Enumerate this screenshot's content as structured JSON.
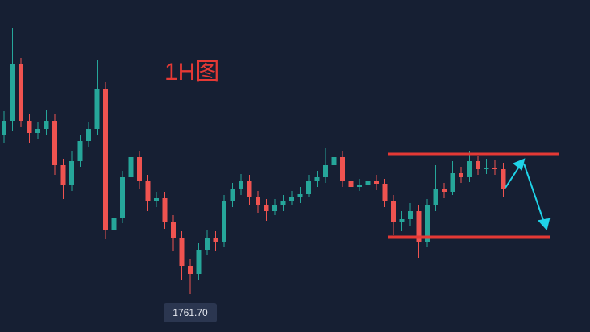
{
  "chart_data": {
    "type": "candlestick",
    "title": "1H图",
    "up_color": "#26a69a",
    "down_color": "#ef5350",
    "ylim": [
      1757.0,
      1798.2
    ],
    "open": [
      1781.5,
      1783.2,
      1790.2,
      1783.2,
      1781.7,
      1782.2,
      1783.2,
      1777.7,
      1775.2,
      1778.2,
      1780.7,
      1782.2,
      1787.2,
      1769.7,
      1771.2,
      1776.2,
      1778.7,
      1775.7,
      1773.2,
      1773.6,
      1770.7,
      1768.7,
      1765.2,
      1764.2,
      1767.2,
      1768.7,
      1768.2,
      1773.2,
      1774.7,
      1775.7,
      1773.7,
      1772.7,
      1772.0,
      1772.7,
      1773.2,
      1773.7,
      1774.1,
      1775.7,
      1776.2,
      1777.7,
      1778.7,
      1775.7,
      1775.0,
      1775.2,
      1775.7,
      1775.4,
      1773.2,
      1770.7,
      1771.0,
      1772.0,
      1768.2,
      1772.7,
      1774.7,
      1774.4,
      1776.7,
      1776.2,
      1778.2,
      1777.2,
      1777.4,
      1777.2
    ],
    "high": [
      1784.4,
      1794.7,
      1791.0,
      1784.0,
      1783.0,
      1784.5,
      1784.0,
      1778.5,
      1779.4,
      1781.5,
      1783.0,
      1790.7,
      1788.0,
      1772.5,
      1777.0,
      1779.5,
      1779.4,
      1776.5,
      1774.4,
      1774.4,
      1771.5,
      1769.5,
      1766.0,
      1768.0,
      1769.6,
      1769.5,
      1774.0,
      1775.5,
      1776.6,
      1776.5,
      1774.5,
      1773.5,
      1773.5,
      1774.0,
      1774.5,
      1775.0,
      1776.5,
      1777.0,
      1779.8,
      1780.2,
      1779.5,
      1776.5,
      1776.0,
      1776.5,
      1776.5,
      1776.0,
      1774.0,
      1772.0,
      1773.0,
      1772.8,
      1773.5,
      1777.7,
      1775.5,
      1778.2,
      1777.5,
      1779.5,
      1778.9,
      1778.5,
      1778.4,
      1778.0
    ],
    "low": [
      1780.5,
      1782.0,
      1782.5,
      1780.5,
      1781.0,
      1781.4,
      1776.5,
      1773.5,
      1774.5,
      1777.5,
      1780.0,
      1781.5,
      1768.5,
      1768.8,
      1770.5,
      1775.5,
      1774.8,
      1772.0,
      1772.5,
      1769.8,
      1767.0,
      1763.5,
      1761.7,
      1763.5,
      1766.5,
      1767.0,
      1767.5,
      1772.5,
      1774.0,
      1772.8,
      1771.8,
      1770.8,
      1771.5,
      1772.0,
      1772.8,
      1773.0,
      1773.8,
      1775.0,
      1775.5,
      1777.5,
      1775.0,
      1774.2,
      1774.5,
      1774.8,
      1774.6,
      1772.5,
      1769.0,
      1769.5,
      1770.2,
      1766.2,
      1767.5,
      1772.0,
      1773.6,
      1774.0,
      1775.5,
      1775.6,
      1776.5,
      1776.6,
      1776.5,
      1773.8
    ],
    "close": [
      1783.2,
      1790.2,
      1783.2,
      1781.7,
      1782.2,
      1783.2,
      1777.7,
      1775.2,
      1778.2,
      1780.7,
      1782.2,
      1787.2,
      1769.7,
      1771.2,
      1776.2,
      1778.7,
      1775.7,
      1773.2,
      1773.6,
      1770.7,
      1768.7,
      1765.2,
      1764.2,
      1767.2,
      1768.7,
      1768.2,
      1773.2,
      1774.7,
      1775.7,
      1773.7,
      1772.7,
      1772.0,
      1772.7,
      1773.2,
      1773.7,
      1774.1,
      1775.7,
      1776.2,
      1777.7,
      1778.7,
      1775.7,
      1775.0,
      1775.2,
      1775.7,
      1775.4,
      1773.2,
      1770.7,
      1771.0,
      1772.0,
      1768.2,
      1772.7,
      1774.7,
      1774.4,
      1776.7,
      1776.2,
      1778.2,
      1777.2,
      1777.4,
      1777.2,
      1774.7
    ],
    "low_marker": {
      "value": 1761.7,
      "label": "1761.70"
    },
    "levels": [
      1779.1,
      1768.8
    ],
    "level_color": "#e53935"
  }
}
